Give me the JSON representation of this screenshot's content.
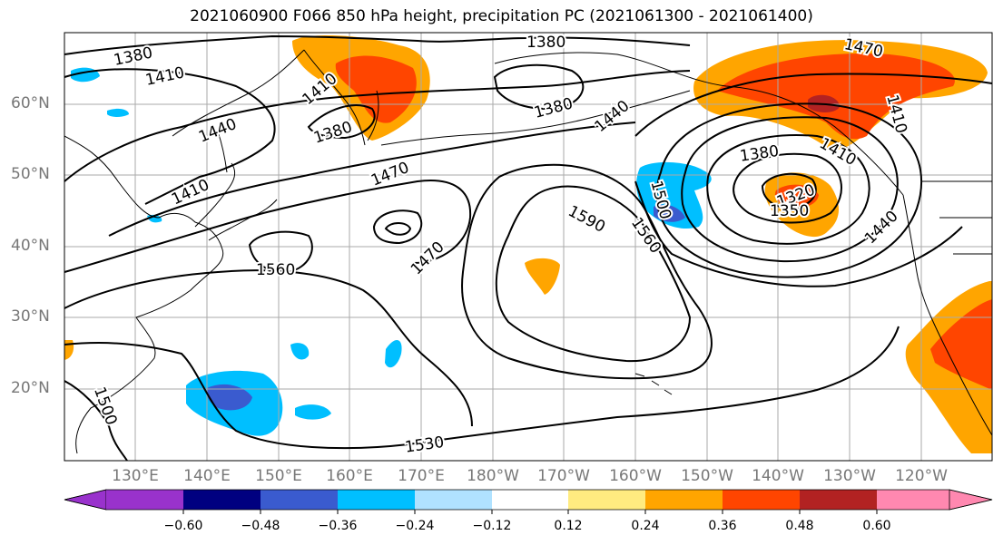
{
  "title": "2021060900 F066 850 hPa height, precipitation PC (2021061300 - 2021061400)",
  "lat_labels": [
    "60°N",
    "50°N",
    "40°N",
    "30°N",
    "20°N"
  ],
  "lon_labels": [
    "130°E",
    "140°E",
    "150°E",
    "160°E",
    "170°E",
    "180°W",
    "170°W",
    "160°W",
    "150°W",
    "140°W",
    "130°W",
    "120°W"
  ],
  "contour_labels": [
    "1380",
    "1410",
    "1410",
    "1380",
    "1440",
    "1380",
    "1410",
    "1470",
    "1380",
    "1440",
    "1470",
    "1410",
    "1410",
    "1380",
    "1320",
    "1350",
    "1440",
    "1500",
    "1560",
    "1590",
    "1470",
    "1560",
    "1500",
    "1530"
  ],
  "colorbar": {
    "ticks": [
      "−0.60",
      "−0.48",
      "−0.36",
      "−0.24",
      "−0.12",
      "0.12",
      "0.24",
      "0.36",
      "0.48",
      "0.60"
    ],
    "colors": [
      "#9932cc",
      "#000080",
      "#3a5bcf",
      "#00bfff",
      "#b0e2ff",
      "#ffffff",
      "#ffeb80",
      "#ffa500",
      "#ff4500",
      "#b22222",
      "#ff88b0"
    ]
  }
}
